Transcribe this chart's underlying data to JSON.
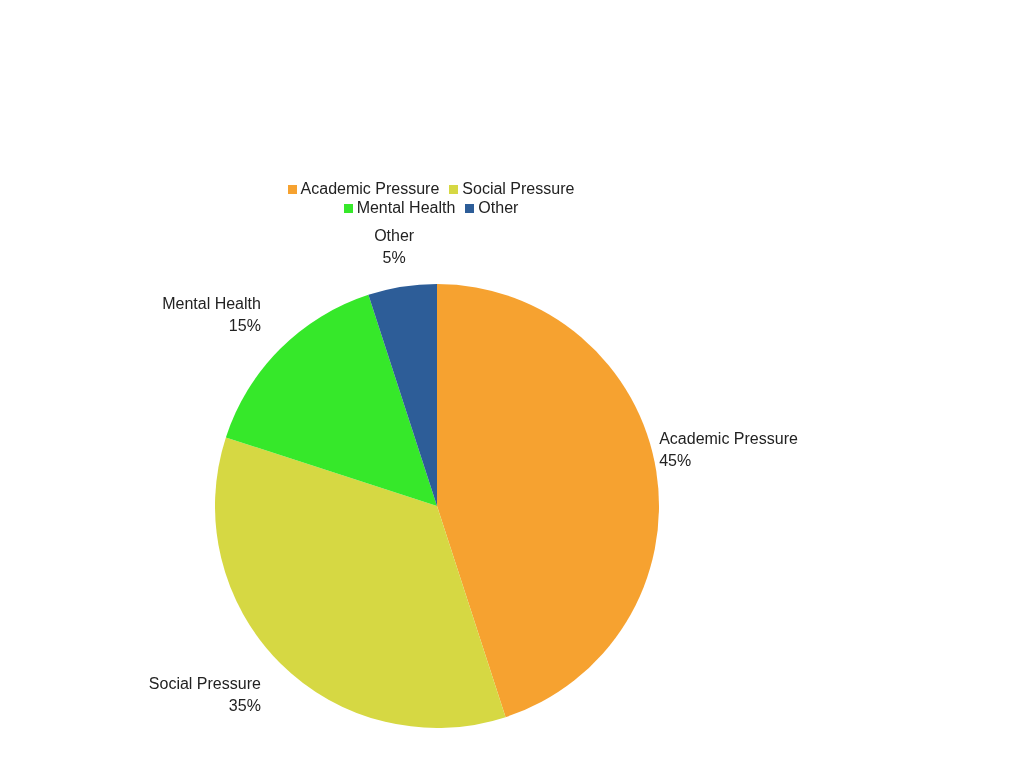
{
  "chart_data": {
    "type": "pie",
    "categories": [
      "Academic Pressure",
      "Social Pressure",
      "Mental Health",
      "Other"
    ],
    "values": [
      45,
      35,
      15,
      5
    ],
    "value_labels": [
      "45%",
      "35%",
      "15%",
      "5%"
    ],
    "colors": [
      "#f6a230",
      "#d6d843",
      "#36e82a",
      "#2d5d98"
    ],
    "legend": "top"
  }
}
